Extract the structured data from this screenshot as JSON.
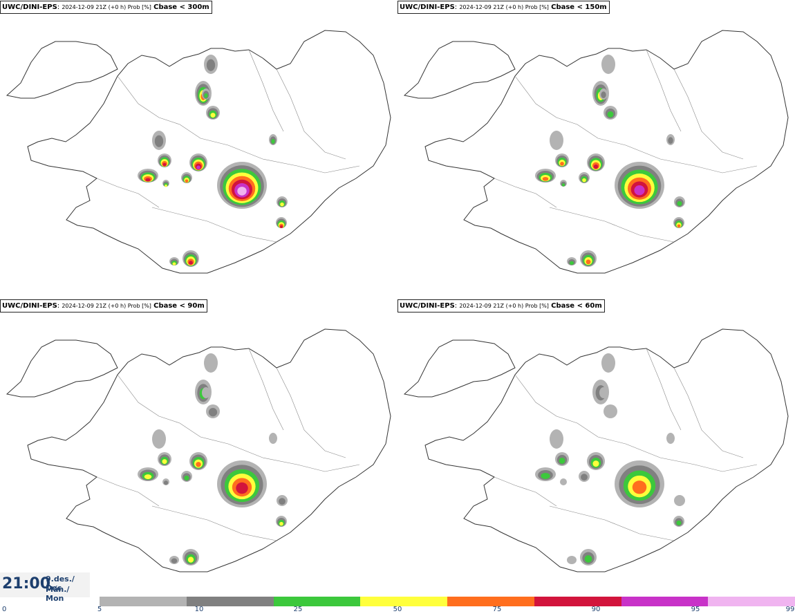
{
  "panels": [
    {
      "model": "UWC/DINI-EPS",
      "meta": "2024-12-09 21Z (+0 h) Prob [%]",
      "threshold": "Cbase < 300m",
      "level": 3
    },
    {
      "model": "UWC/DINI-EPS",
      "meta": "2024-12-09 21Z (+0 h) Prob [%]",
      "threshold": "Cbase < 150m",
      "level": 2
    },
    {
      "model": "UWC/DINI-EPS",
      "meta": "2024-12-09 21Z (+0 h) Prob [%]",
      "threshold": "Cbase < 90m",
      "level": 1
    },
    {
      "model": "UWC/DINI-EPS",
      "meta": "2024-12-09 21Z (+0 h) Prob [%]",
      "threshold": "Cbase < 60m",
      "level": 0
    }
  ],
  "timebox": {
    "time": "21:00",
    "date_line1": "9.des./ Dec",
    "date_line2": "Mán./ Mon"
  },
  "legend": {
    "colors": [
      "#b3b3b3",
      "#808080",
      "#3cc83c",
      "#ffff3c",
      "#ff6e1e",
      "#d2143c",
      "#c832c8",
      "#f0b4f0"
    ],
    "ticks": [
      "0",
      "5",
      "10",
      "25",
      "50",
      "75",
      "90",
      "95",
      "99"
    ]
  }
}
